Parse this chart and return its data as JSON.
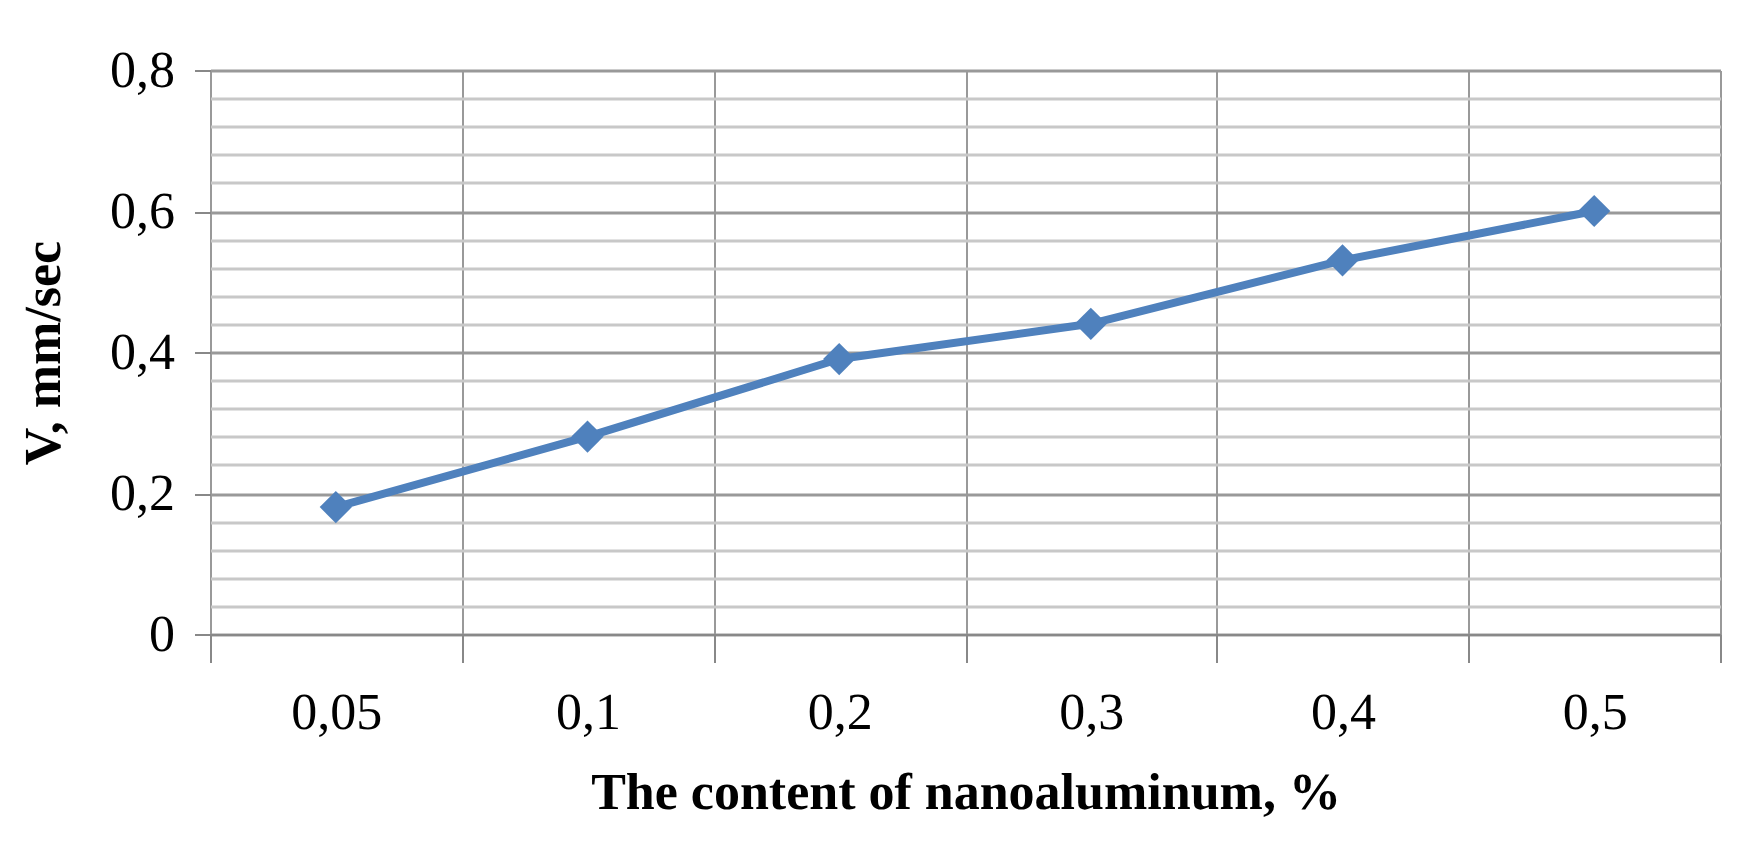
{
  "chart_data": {
    "type": "line",
    "xlabel": "The content of nanoaluminum, %",
    "ylabel": "V, mm/sec",
    "categories": [
      "0,05",
      "0,1",
      "0,2",
      "0,3",
      "0,4",
      "0,5"
    ],
    "series": [
      {
        "color": "#4f81bd",
        "values": [
          0.18,
          0.28,
          0.39,
          0.44,
          0.53,
          0.6
        ]
      }
    ],
    "ylim": [
      0,
      0.8
    ],
    "yticks": [
      0,
      {
        "value": 0.04,
        "label": null
      },
      {
        "value": 0.08,
        "label": null
      },
      {
        "value": 0.12,
        "label": null
      },
      {
        "value": 0.16,
        "label": null
      },
      {
        "value": 0.2,
        "label": "0,2"
      },
      {
        "value": 0.24,
        "label": null
      },
      {
        "value": 0.28,
        "label": null
      },
      {
        "value": 0.32,
        "label": null
      },
      {
        "value": 0.36,
        "label": null
      },
      {
        "value": 0.4,
        "label": "0,4"
      },
      {
        "value": 0.44,
        "label": null
      },
      {
        "value": 0.48,
        "label": null
      },
      {
        "value": 0.52,
        "label": null
      },
      {
        "value": 0.56,
        "label": null
      },
      {
        "value": 0.6,
        "label": "0,6"
      },
      {
        "value": 0.64,
        "label": null
      },
      {
        "value": 0.68,
        "label": null
      },
      {
        "value": 0.72,
        "label": null
      },
      {
        "value": 0.76,
        "label": null
      },
      {
        "value": 0.8,
        "label": "0,8"
      }
    ],
    "grid": true,
    "marker": "diamond",
    "line_style": "solid",
    "legend": false
  }
}
